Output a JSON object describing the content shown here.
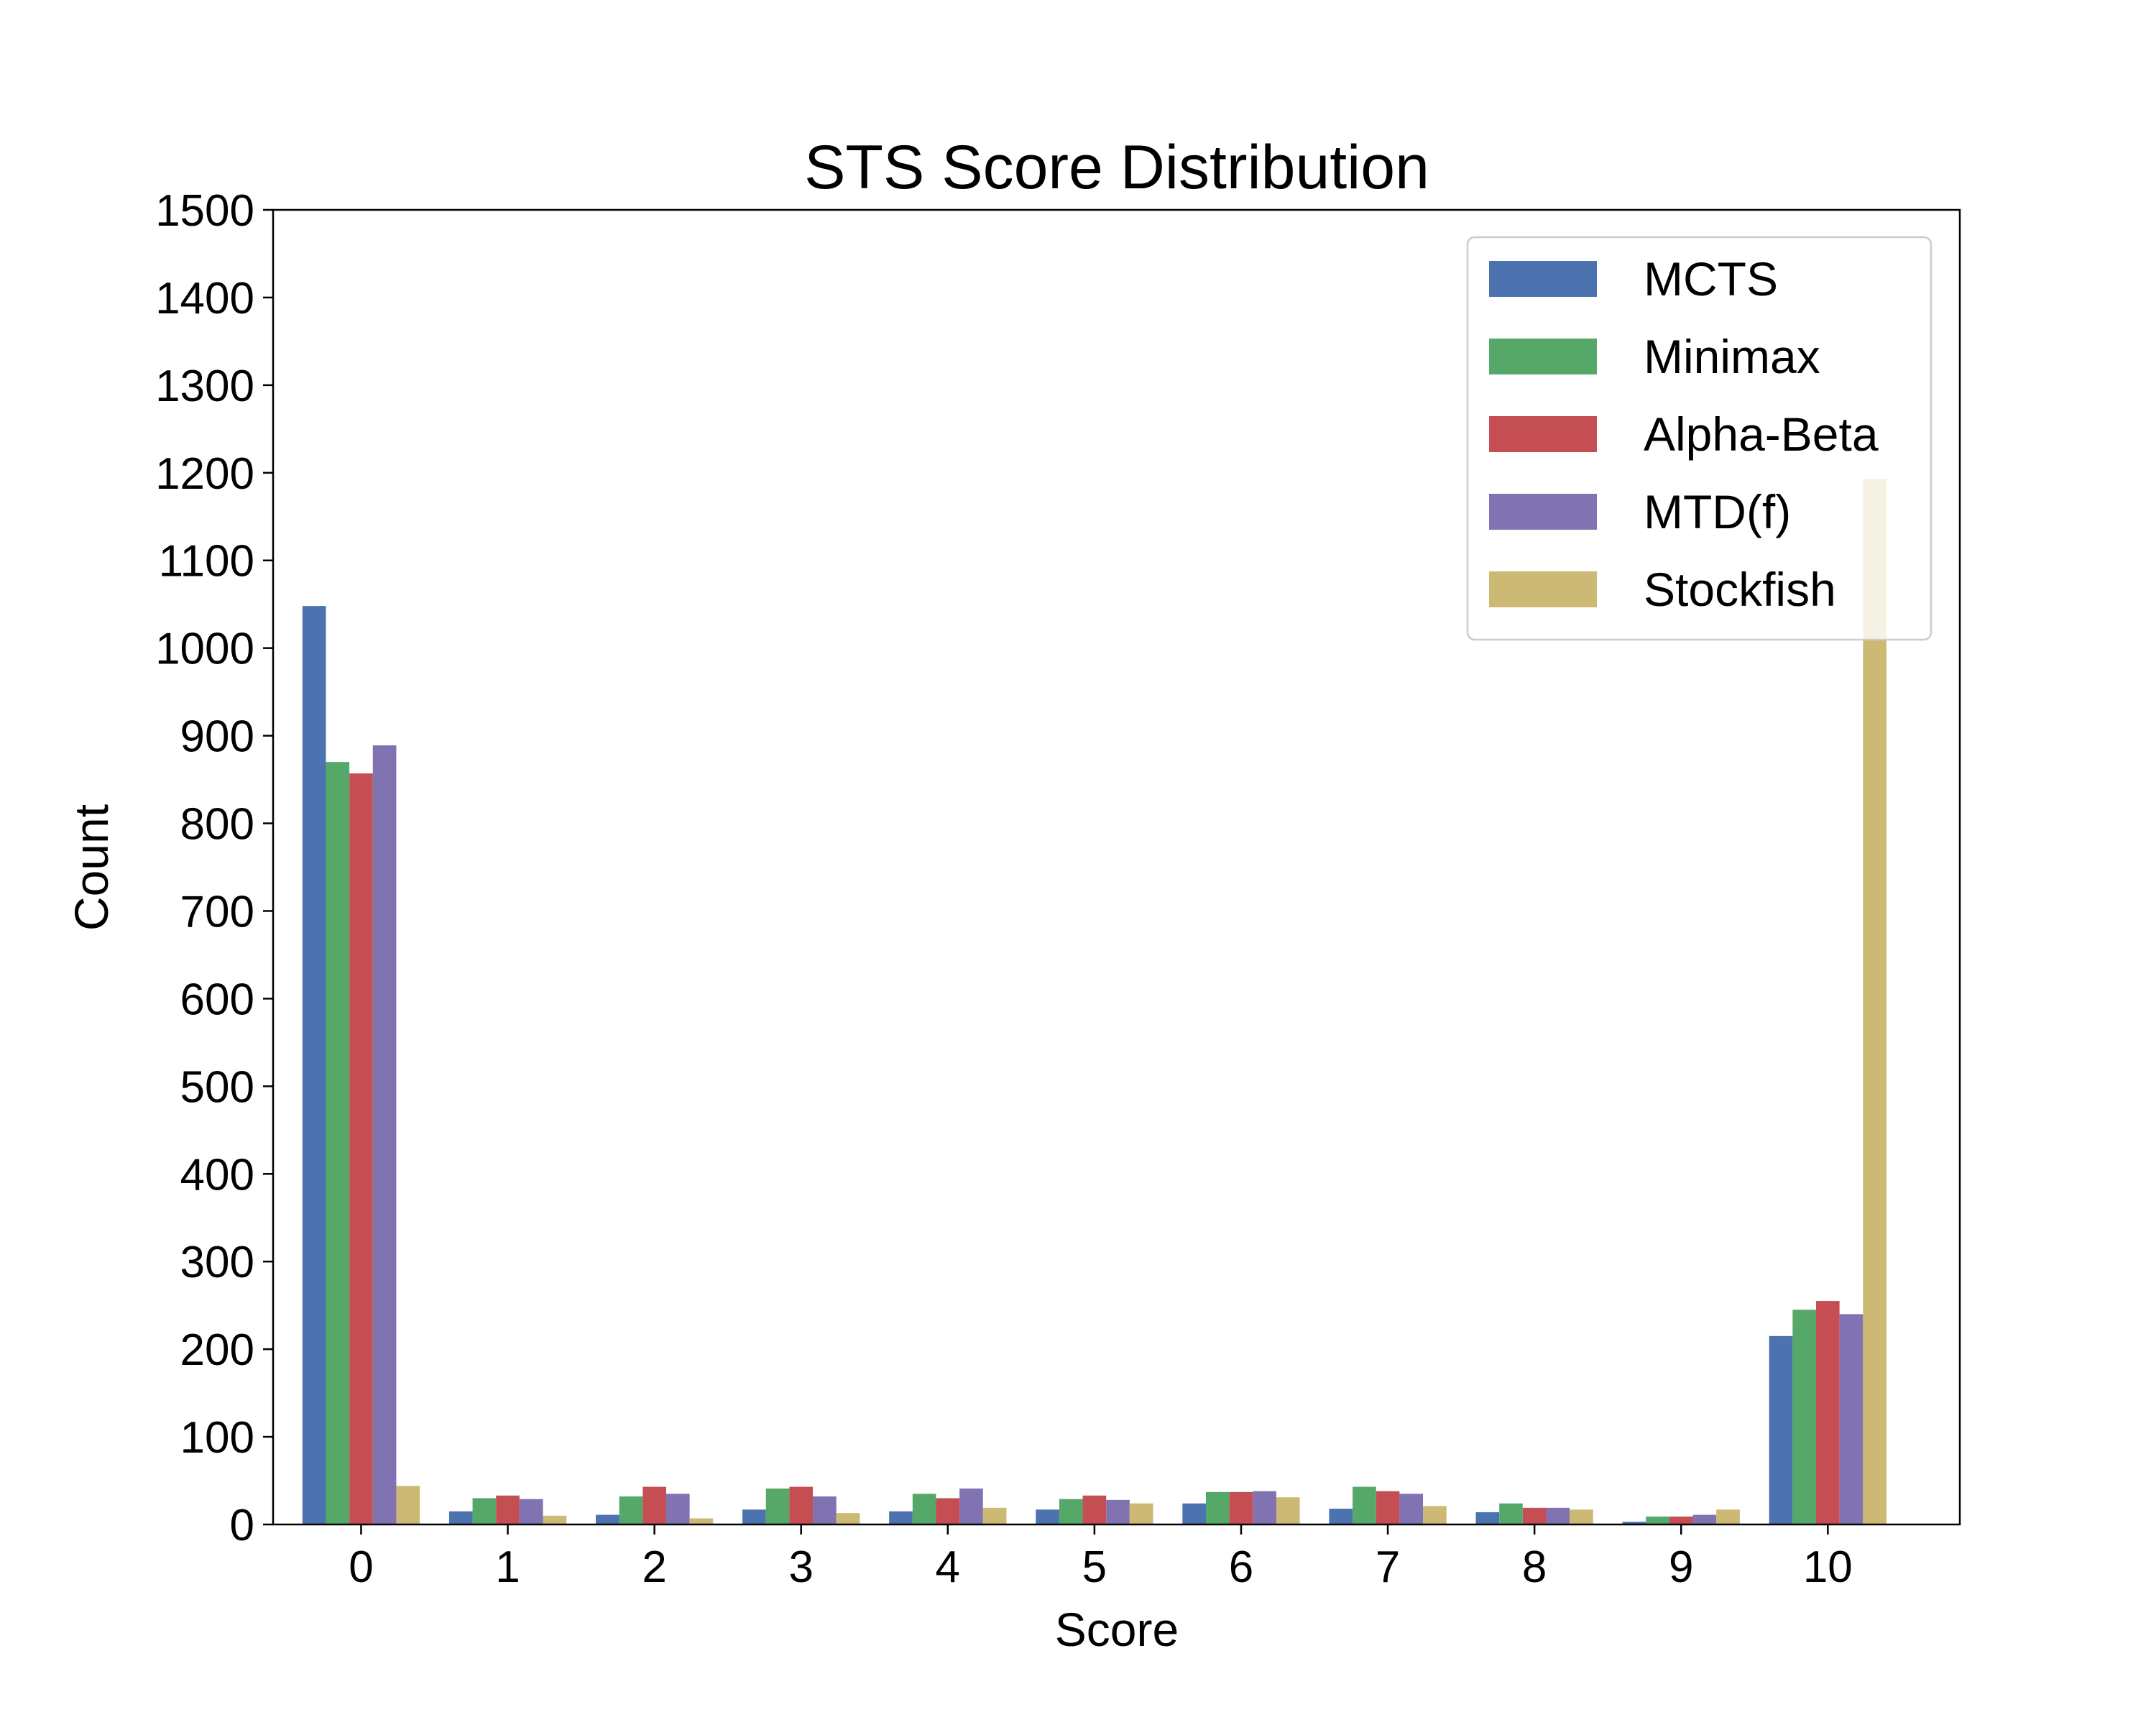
{
  "chart_data": {
    "type": "bar",
    "title": "STS Score Distribution",
    "xlabel": "Score",
    "ylabel": "Count",
    "categories": [
      "0",
      "1",
      "2",
      "3",
      "4",
      "5",
      "6",
      "7",
      "8",
      "9",
      "10"
    ],
    "ylim": [
      0,
      1500
    ],
    "yticks": [
      "0",
      "100",
      "200",
      "300",
      "400",
      "500",
      "600",
      "700",
      "800",
      "900",
      "1000",
      "1100",
      "1200",
      "1300",
      "1400",
      "1500"
    ],
    "grid": false,
    "legend_position": "top-right",
    "series": [
      {
        "name": "MCTS",
        "color": "#4c72b0",
        "values": [
          1048,
          15,
          11,
          17,
          15,
          17,
          24,
          18,
          14,
          3,
          215
        ]
      },
      {
        "name": "Minimax",
        "color": "#55a868",
        "values": [
          870,
          30,
          32,
          41,
          35,
          29,
          37,
          43,
          24,
          9,
          245
        ]
      },
      {
        "name": "Alpha-Beta",
        "color": "#c44e52",
        "values": [
          857,
          33,
          43,
          43,
          30,
          33,
          37,
          38,
          19,
          9,
          255
        ]
      },
      {
        "name": "MTD(f)",
        "color": "#8172b2",
        "values": [
          889,
          29,
          35,
          32,
          41,
          28,
          38,
          35,
          19,
          11,
          240
        ]
      },
      {
        "name": "Stockfish",
        "color": "#ccb974",
        "values": [
          44,
          10,
          7,
          13,
          19,
          24,
          31,
          21,
          17,
          17,
          1193
        ]
      }
    ]
  }
}
